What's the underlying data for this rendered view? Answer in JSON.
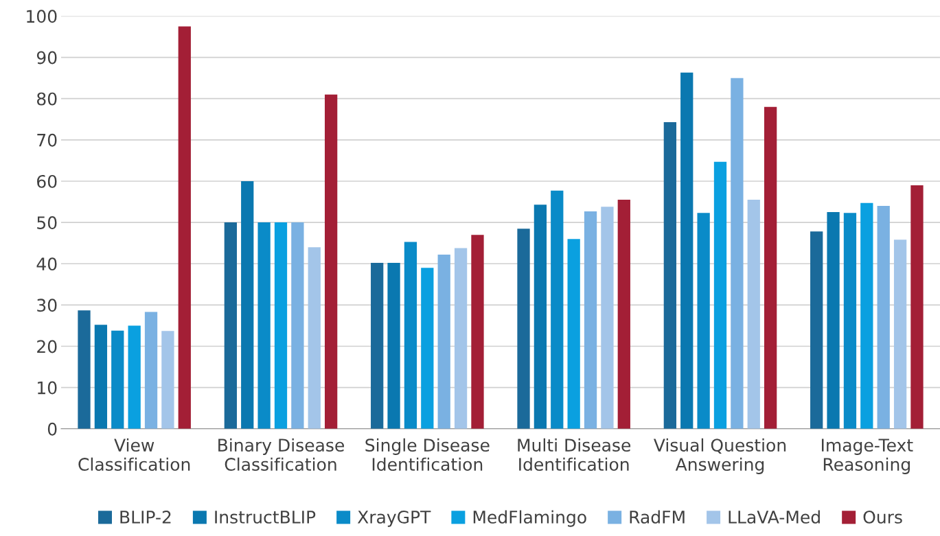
{
  "chart_data": {
    "type": "bar",
    "categories": [
      "View\nClassification",
      "Binary Disease\nClassification",
      "Single Disease\nIdentification",
      "Multi Disease\nIdentification",
      "Visual Question\nAnswering",
      "Image-Text\nReasoning"
    ],
    "series": [
      {
        "name": "BLIP-2",
        "color": "#1b6a9a",
        "values": [
          28.7,
          50,
          40.2,
          48.5,
          74.3,
          47.8
        ]
      },
      {
        "name": "InstructBLIP",
        "color": "#0a78b0",
        "values": [
          25.2,
          60,
          40.2,
          54.3,
          86.3,
          52.5
        ]
      },
      {
        "name": "XrayGPT",
        "color": "#0a8bc8",
        "values": [
          23.8,
          50,
          45.3,
          57.7,
          52.3,
          52.3
        ]
      },
      {
        "name": "MedFlamingo",
        "color": "#0aa0e0",
        "values": [
          25,
          50,
          39,
          46,
          64.7,
          54.7
        ]
      },
      {
        "name": "RadFM",
        "color": "#7ab1e2",
        "values": [
          28.3,
          50,
          42.2,
          52.7,
          85,
          54
        ]
      },
      {
        "name": "LLaVA-Med",
        "color": "#a3c5e9",
        "values": [
          23.7,
          44,
          43.8,
          53.8,
          55.5,
          45.8
        ]
      },
      {
        "name": "Ours",
        "color": "#a31f36",
        "values": [
          97.5,
          81,
          47,
          55.5,
          78,
          59
        ]
      }
    ],
    "ylim": [
      0,
      100
    ],
    "yticks": [
      0,
      10,
      20,
      30,
      40,
      50,
      60,
      70,
      80,
      90,
      100
    ],
    "grid": "y",
    "legend": "bottom"
  }
}
